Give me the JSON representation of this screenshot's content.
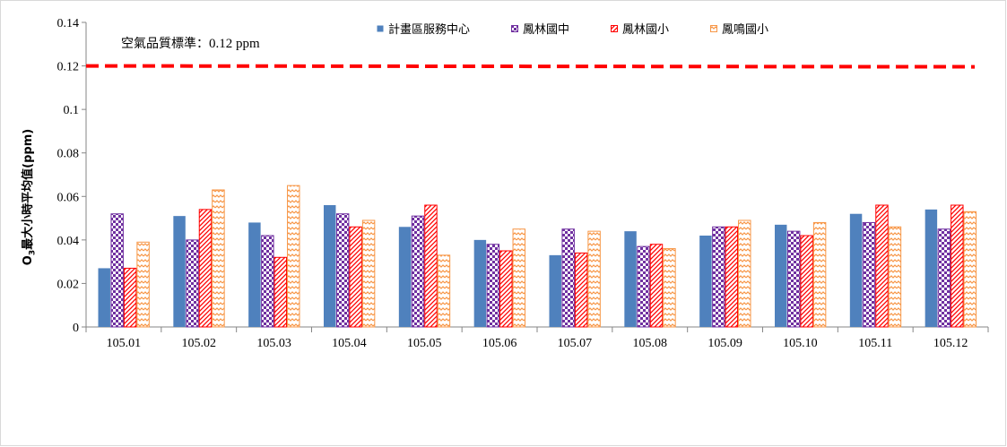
{
  "chart_data": {
    "type": "bar",
    "title": "",
    "ylabel": {
      "main": "O",
      "sub": "3",
      "rest": "最大小時平均值(ppm)"
    },
    "xlabel": "",
    "ylim": [
      0,
      0.14
    ],
    "yticks": [
      "0",
      "0.02",
      "0.04",
      "0.06",
      "0.08",
      "0.1",
      "0.12",
      "0.14"
    ],
    "categories": [
      "105.01",
      "105.02",
      "105.03",
      "105.04",
      "105.05",
      "105.06",
      "105.07",
      "105.08",
      "105.09",
      "105.10",
      "105.11",
      "105.12"
    ],
    "series": [
      {
        "name": "計畫區服務中心",
        "color": "#4F81BD",
        "pattern": "solid",
        "values": [
          0.027,
          0.051,
          0.048,
          0.056,
          0.046,
          0.04,
          0.033,
          0.044,
          0.042,
          0.047,
          0.052,
          0.054
        ]
      },
      {
        "name": "鳳林國中",
        "color": "#7030A0",
        "pattern": "checker",
        "values": [
          0.052,
          0.04,
          0.042,
          0.052,
          0.051,
          0.038,
          0.045,
          0.037,
          0.046,
          0.044,
          0.048,
          0.045
        ]
      },
      {
        "name": "鳳林國小",
        "color": "#FF0000",
        "pattern": "diagonal",
        "values": [
          0.027,
          0.054,
          0.032,
          0.046,
          0.056,
          0.035,
          0.034,
          0.038,
          0.046,
          0.042,
          0.056,
          0.056
        ]
      },
      {
        "name": "鳳鳴國小",
        "color": "#F79646",
        "pattern": "wave",
        "values": [
          0.039,
          0.063,
          0.065,
          0.049,
          0.033,
          0.045,
          0.044,
          0.036,
          0.049,
          0.048,
          0.046,
          0.053
        ]
      }
    ],
    "reference_line": {
      "value": 0.12,
      "label": "空氣品質標準：",
      "label_value": "0.12 ppm",
      "color": "#FF0000",
      "style": "dashed"
    },
    "grid": false,
    "legend_position": "top"
  }
}
